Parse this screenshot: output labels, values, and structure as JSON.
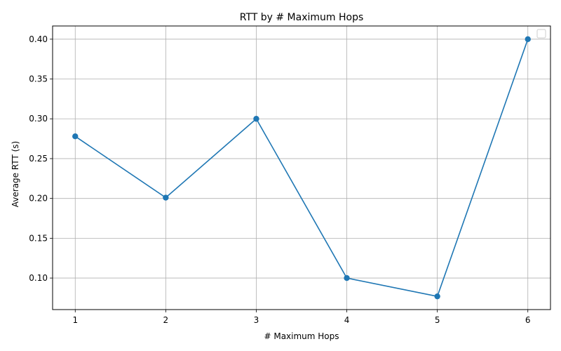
{
  "chart_data": {
    "type": "line",
    "title": "RTT by # Maximum Hops",
    "xlabel": "# Maximum Hops",
    "ylabel": "Average RTT (s)",
    "x": [
      1,
      2,
      3,
      4,
      5,
      6
    ],
    "series": [
      {
        "values": [
          0.278,
          0.201,
          0.3,
          0.1,
          0.077,
          0.4
        ]
      }
    ],
    "xlim": [
      0.75,
      6.25
    ],
    "ylim": [
      0.0604,
      0.4166
    ],
    "xticks": [
      1,
      2,
      3,
      4,
      5,
      6
    ],
    "yticks": [
      0.1,
      0.15,
      0.2,
      0.25,
      0.3,
      0.35,
      0.4
    ],
    "ytick_labels": [
      "0.10",
      "0.15",
      "0.20",
      "0.25",
      "0.30",
      "0.35",
      "0.40"
    ],
    "grid": true,
    "legend": "top-right",
    "line_color": "#1f77b4",
    "grid_color": "#b0b0b0"
  }
}
